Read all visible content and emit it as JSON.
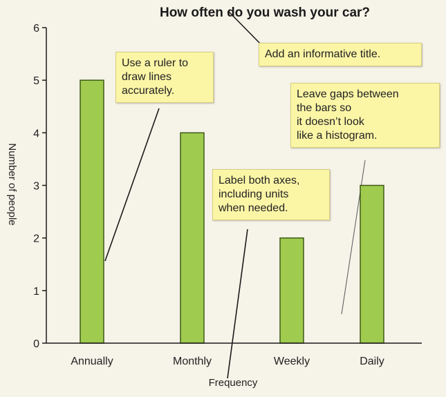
{
  "chart_data": {
    "type": "bar",
    "title": "How often do you wash your car?",
    "xlabel": "Frequency",
    "ylabel": "Number of people",
    "categories": [
      "Annually",
      "Monthly",
      "Weekly",
      "Daily"
    ],
    "values": [
      5,
      4,
      2,
      3
    ],
    "ylim": [
      0,
      6
    ],
    "yticks": [
      0,
      1,
      2,
      3,
      4,
      5,
      6
    ],
    "grid": false,
    "colors": {
      "bar_fill": "#9fcc4e",
      "bar_stroke": "#3d5a16",
      "note_fill": "#fbf5a6",
      "background": "#f6f3e8"
    },
    "annotations": [
      {
        "id": "title",
        "lines": [
          "Add an informative title."
        ]
      },
      {
        "id": "ruler",
        "lines": [
          "Use a ruler to",
          "draw lines",
          "accurately."
        ]
      },
      {
        "id": "gaps",
        "lines": [
          "Leave gaps between",
          "the bars so",
          "it doesn’t look",
          "like a histogram."
        ]
      },
      {
        "id": "axes",
        "lines": [
          "Label both axes,",
          "including units",
          "when needed."
        ]
      }
    ]
  }
}
